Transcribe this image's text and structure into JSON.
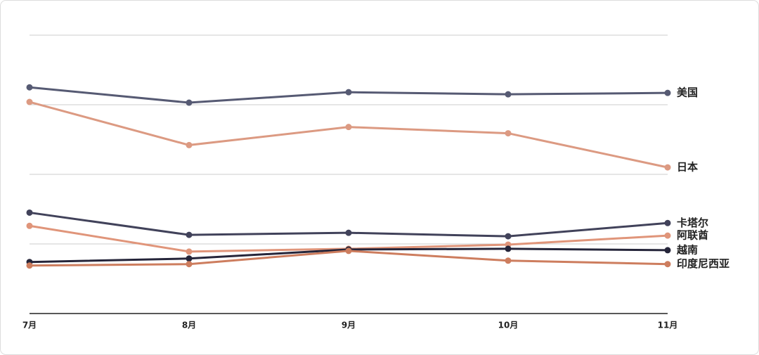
{
  "chart_data": {
    "type": "line",
    "categories": [
      "7月",
      "8月",
      "9月",
      "10月",
      "11月"
    ],
    "ylim": [
      0,
      4
    ],
    "yticks": [
      0,
      1,
      2,
      3,
      4
    ],
    "grid": true,
    "series": [
      {
        "name": "美国",
        "color": "#565a73",
        "values": [
          3.25,
          3.03,
          3.18,
          3.15,
          3.17
        ]
      },
      {
        "name": "日本",
        "color": "#dc9a82",
        "values": [
          3.04,
          2.42,
          2.68,
          2.59,
          2.1
        ]
      },
      {
        "name": "卡塔尔",
        "color": "#41425a",
        "values": [
          1.45,
          1.13,
          1.16,
          1.11,
          1.3
        ]
      },
      {
        "name": "阿联酋",
        "color": "#e0957a",
        "values": [
          1.26,
          0.89,
          0.93,
          0.99,
          1.12
        ]
      },
      {
        "name": "越南",
        "color": "#25253a",
        "values": [
          0.74,
          0.79,
          0.92,
          0.93,
          0.91
        ]
      },
      {
        "name": "印度尼西亚",
        "color": "#cd7d5e",
        "values": [
          0.69,
          0.71,
          0.9,
          0.76,
          0.71
        ]
      }
    ]
  }
}
